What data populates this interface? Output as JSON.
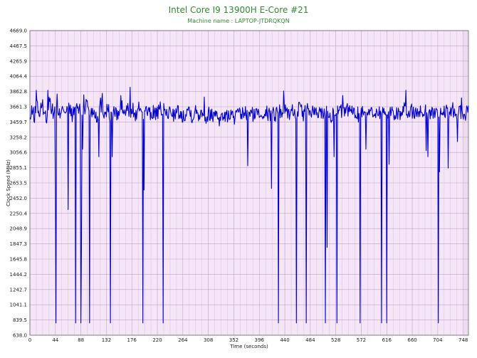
{
  "chart_data": {
    "type": "line",
    "title": "Intel Core I9 13900H E-Core #21",
    "subtitle": "Machine name : LAPTOP-JTDRQKQN",
    "xlabel": "Time (seconds)",
    "ylabel": "Clock Speed (MHz)",
    "xlim": [
      0,
      757
    ],
    "ylim": [
      638.0,
      4669.0
    ],
    "x_ticks": [
      0,
      44,
      88,
      132,
      176,
      220,
      264,
      308,
      352,
      396,
      440,
      484,
      528,
      572,
      616,
      660,
      704,
      748
    ],
    "y_ticks": [
      "638.0",
      "839.5",
      "1041.1",
      "1242.7",
      "1444.2",
      "1645.8",
      "1847.3",
      "2048.9",
      "2250.4",
      "2452.0",
      "2653.5",
      "2855.1",
      "3056.6",
      "3258.2",
      "3459.7",
      "3661.3",
      "3862.8",
      "4064.4",
      "4265.9",
      "4467.5",
      "4669.0"
    ],
    "grid": true,
    "colors": {
      "plot_background": "#f5e6f7",
      "grid": "#bfa2c7",
      "line": "#0000cc",
      "title": "#2e8b2e"
    },
    "series": [
      {
        "sample_interval_s": 1,
        "baseline_points": [
          [
            0,
            3480
          ],
          [
            4,
            3610
          ],
          [
            8,
            3530
          ],
          [
            12,
            3720
          ],
          [
            16,
            3560
          ],
          [
            22,
            3680
          ],
          [
            28,
            3500
          ],
          [
            34,
            3760
          ],
          [
            40,
            3570
          ],
          [
            44,
            3640
          ],
          [
            50,
            3520
          ],
          [
            56,
            3700
          ],
          [
            62,
            3580
          ],
          [
            68,
            3640
          ],
          [
            74,
            3540
          ],
          [
            80,
            3680
          ],
          [
            86,
            3600
          ],
          [
            92,
            3560
          ],
          [
            98,
            3720
          ],
          [
            104,
            3580
          ],
          [
            110,
            3620
          ],
          [
            116,
            3520
          ],
          [
            122,
            3700
          ],
          [
            128,
            3580
          ],
          [
            134,
            3640
          ],
          [
            140,
            3520
          ],
          [
            146,
            3600
          ],
          [
            152,
            3540
          ],
          [
            158,
            3680
          ],
          [
            164,
            3560
          ],
          [
            168,
            3640
          ],
          [
            172,
            3580
          ],
          [
            178,
            3620
          ],
          [
            184,
            3520
          ],
          [
            190,
            3680
          ],
          [
            196,
            3560
          ],
          [
            202,
            3620
          ],
          [
            208,
            3540
          ],
          [
            214,
            3600
          ],
          [
            220,
            3560
          ],
          [
            226,
            3640
          ],
          [
            232,
            3600
          ],
          [
            238,
            3560
          ],
          [
            244,
            3620
          ],
          [
            250,
            3540
          ],
          [
            256,
            3600
          ],
          [
            262,
            3520
          ],
          [
            268,
            3580
          ],
          [
            274,
            3640
          ],
          [
            280,
            3540
          ],
          [
            286,
            3600
          ],
          [
            292,
            3560
          ],
          [
            298,
            3620
          ],
          [
            304,
            3500
          ],
          [
            310,
            3580
          ],
          [
            316,
            3540
          ],
          [
            322,
            3600
          ],
          [
            328,
            3480
          ],
          [
            334,
            3560
          ],
          [
            340,
            3520
          ],
          [
            346,
            3580
          ],
          [
            352,
            3500
          ],
          [
            358,
            3560
          ],
          [
            364,
            3540
          ],
          [
            370,
            3600
          ],
          [
            376,
            3520
          ],
          [
            382,
            3580
          ],
          [
            388,
            3540
          ],
          [
            394,
            3600
          ],
          [
            400,
            3560
          ],
          [
            406,
            3620
          ],
          [
            412,
            3540
          ],
          [
            418,
            3600
          ],
          [
            424,
            3560
          ],
          [
            430,
            3620
          ],
          [
            436,
            3580
          ],
          [
            442,
            3640
          ],
          [
            448,
            3560
          ],
          [
            454,
            3620
          ],
          [
            460,
            3580
          ],
          [
            466,
            3640
          ],
          [
            472,
            3560
          ],
          [
            478,
            3620
          ],
          [
            484,
            3580
          ],
          [
            490,
            3600
          ],
          [
            496,
            3540
          ],
          [
            502,
            3620
          ],
          [
            508,
            3560
          ],
          [
            514,
            3600
          ],
          [
            520,
            3540
          ],
          [
            526,
            3620
          ],
          [
            532,
            3580
          ],
          [
            538,
            3600
          ],
          [
            544,
            3560
          ],
          [
            550,
            3640
          ],
          [
            556,
            3580
          ],
          [
            562,
            3600
          ],
          [
            568,
            3540
          ],
          [
            574,
            3620
          ],
          [
            580,
            3580
          ],
          [
            586,
            3600
          ],
          [
            592,
            3560
          ],
          [
            598,
            3620
          ],
          [
            604,
            3580
          ],
          [
            610,
            3600
          ],
          [
            616,
            3540
          ],
          [
            622,
            3620
          ],
          [
            628,
            3560
          ],
          [
            634,
            3600
          ],
          [
            640,
            3560
          ],
          [
            646,
            3620
          ],
          [
            652,
            3580
          ],
          [
            658,
            3620
          ],
          [
            664,
            3560
          ],
          [
            670,
            3600
          ],
          [
            676,
            3580
          ],
          [
            682,
            3620
          ],
          [
            688,
            3540
          ],
          [
            694,
            3600
          ],
          [
            700,
            3560
          ],
          [
            706,
            3620
          ],
          [
            712,
            3540
          ],
          [
            718,
            3600
          ],
          [
            724,
            3560
          ],
          [
            730,
            3620
          ],
          [
            736,
            3560
          ],
          [
            742,
            3600
          ],
          [
            748,
            3540
          ],
          [
            754,
            3600
          ],
          [
            757,
            3580
          ]
        ],
        "peaks": [
          [
            11,
            3880
          ],
          [
            31,
            3880
          ],
          [
            47,
            3830
          ],
          [
            93,
            3820
          ],
          [
            125,
            3840
          ],
          [
            157,
            3810
          ],
          [
            173,
            3920
          ],
          [
            301,
            3790
          ],
          [
            438,
            3870
          ],
          [
            540,
            3810
          ],
          [
            649,
            3880
          ],
          [
            745,
            3780
          ]
        ],
        "dips": [
          [
            44,
            2560
          ],
          [
            45,
            800
          ],
          [
            66,
            2300
          ],
          [
            79,
            800
          ],
          [
            88,
            800
          ],
          [
            89,
            1800
          ],
          [
            91,
            3100
          ],
          [
            103,
            800
          ],
          [
            119,
            3000
          ],
          [
            139,
            800
          ],
          [
            142,
            3000
          ],
          [
            195,
            800
          ],
          [
            197,
            2560
          ],
          [
            230,
            800
          ],
          [
            376,
            2880
          ],
          [
            417,
            2580
          ],
          [
            429,
            800
          ],
          [
            460,
            800
          ],
          [
            477,
            800
          ],
          [
            510,
            800
          ],
          [
            513,
            1800
          ],
          [
            525,
            3000
          ],
          [
            530,
            800
          ],
          [
            570,
            800
          ],
          [
            580,
            3100
          ],
          [
            607,
            800
          ],
          [
            616,
            800
          ],
          [
            620,
            2900
          ],
          [
            684,
            3080
          ],
          [
            687,
            3000
          ],
          [
            705,
            800
          ],
          [
            707,
            2800
          ],
          [
            722,
            2850
          ],
          [
            738,
            3200
          ]
        ]
      }
    ]
  }
}
